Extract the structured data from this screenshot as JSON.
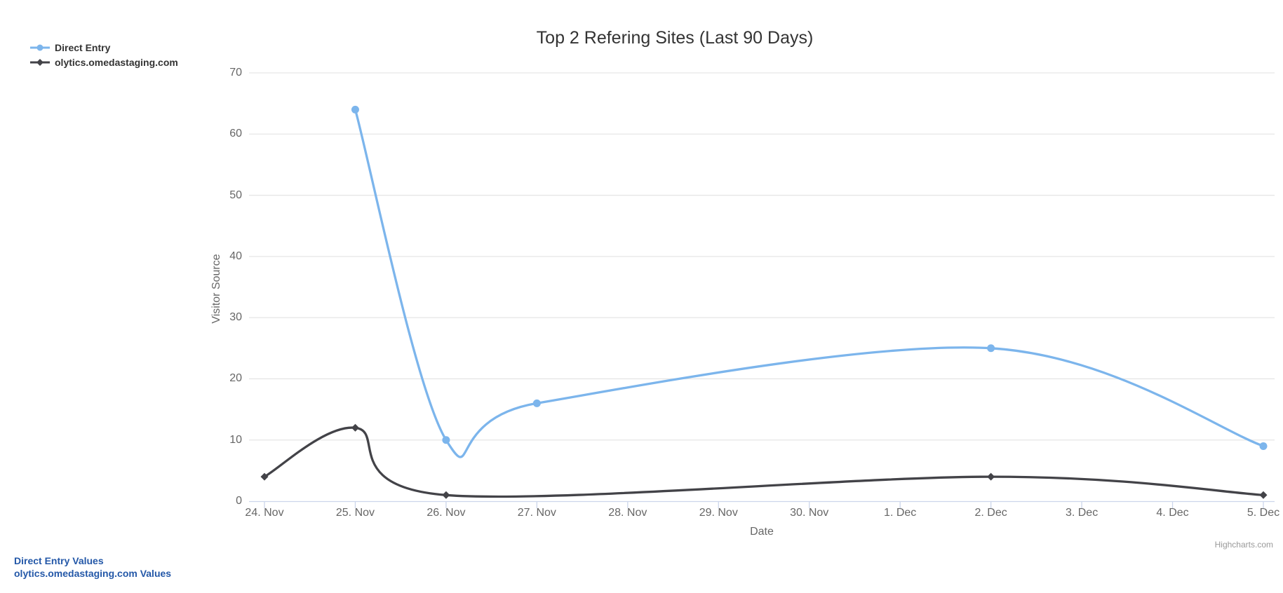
{
  "chart": {
    "credit": "Highcharts.com"
  },
  "chart_data": {
    "type": "line",
    "subtype": "spline",
    "title": "Top 2 Refering Sites (Last 90 Days)",
    "xlabel": "Date",
    "ylabel": "Visitor Source",
    "ylim": [
      0,
      70
    ],
    "yticks": [
      0,
      10,
      20,
      30,
      40,
      50,
      60,
      70
    ],
    "categories": [
      "24. Nov",
      "25. Nov",
      "26. Nov",
      "27. Nov",
      "28. Nov",
      "29. Nov",
      "30. Nov",
      "1. Dec",
      "2. Dec",
      "3. Dec",
      "4. Dec",
      "5. Dec"
    ],
    "grid": true,
    "legend_position": "top-left",
    "colors": {
      "grid": "#e6e6e6",
      "axis_line": "#ccd6eb",
      "axis_text": "#666666",
      "title_text": "#333333"
    },
    "series": [
      {
        "name": "Direct Entry",
        "color": "#7cb5ec",
        "marker": "circle",
        "points": [
          {
            "category": "25. Nov",
            "i": 1,
            "y": 64
          },
          {
            "category": "26. Nov",
            "i": 2,
            "y": 10
          },
          {
            "category": "27. Nov",
            "i": 3,
            "y": 16
          },
          {
            "category": "2. Dec",
            "i": 8,
            "y": 25
          },
          {
            "category": "5. Dec",
            "i": 11,
            "y": 9
          }
        ]
      },
      {
        "name": "olytics.omedastaging.com",
        "color": "#434348",
        "marker": "diamond",
        "points": [
          {
            "category": "24. Nov",
            "i": 0,
            "y": 4
          },
          {
            "category": "25. Nov",
            "i": 1,
            "y": 12
          },
          {
            "category": "26. Nov",
            "i": 2,
            "y": 1
          },
          {
            "category": "2. Dec",
            "i": 8,
            "y": 4
          },
          {
            "category": "5. Dec",
            "i": 11,
            "y": 1
          }
        ]
      }
    ]
  },
  "footer_links": [
    {
      "label": "Direct Entry Values"
    },
    {
      "label": "olytics.omedastaging.com Values"
    }
  ]
}
